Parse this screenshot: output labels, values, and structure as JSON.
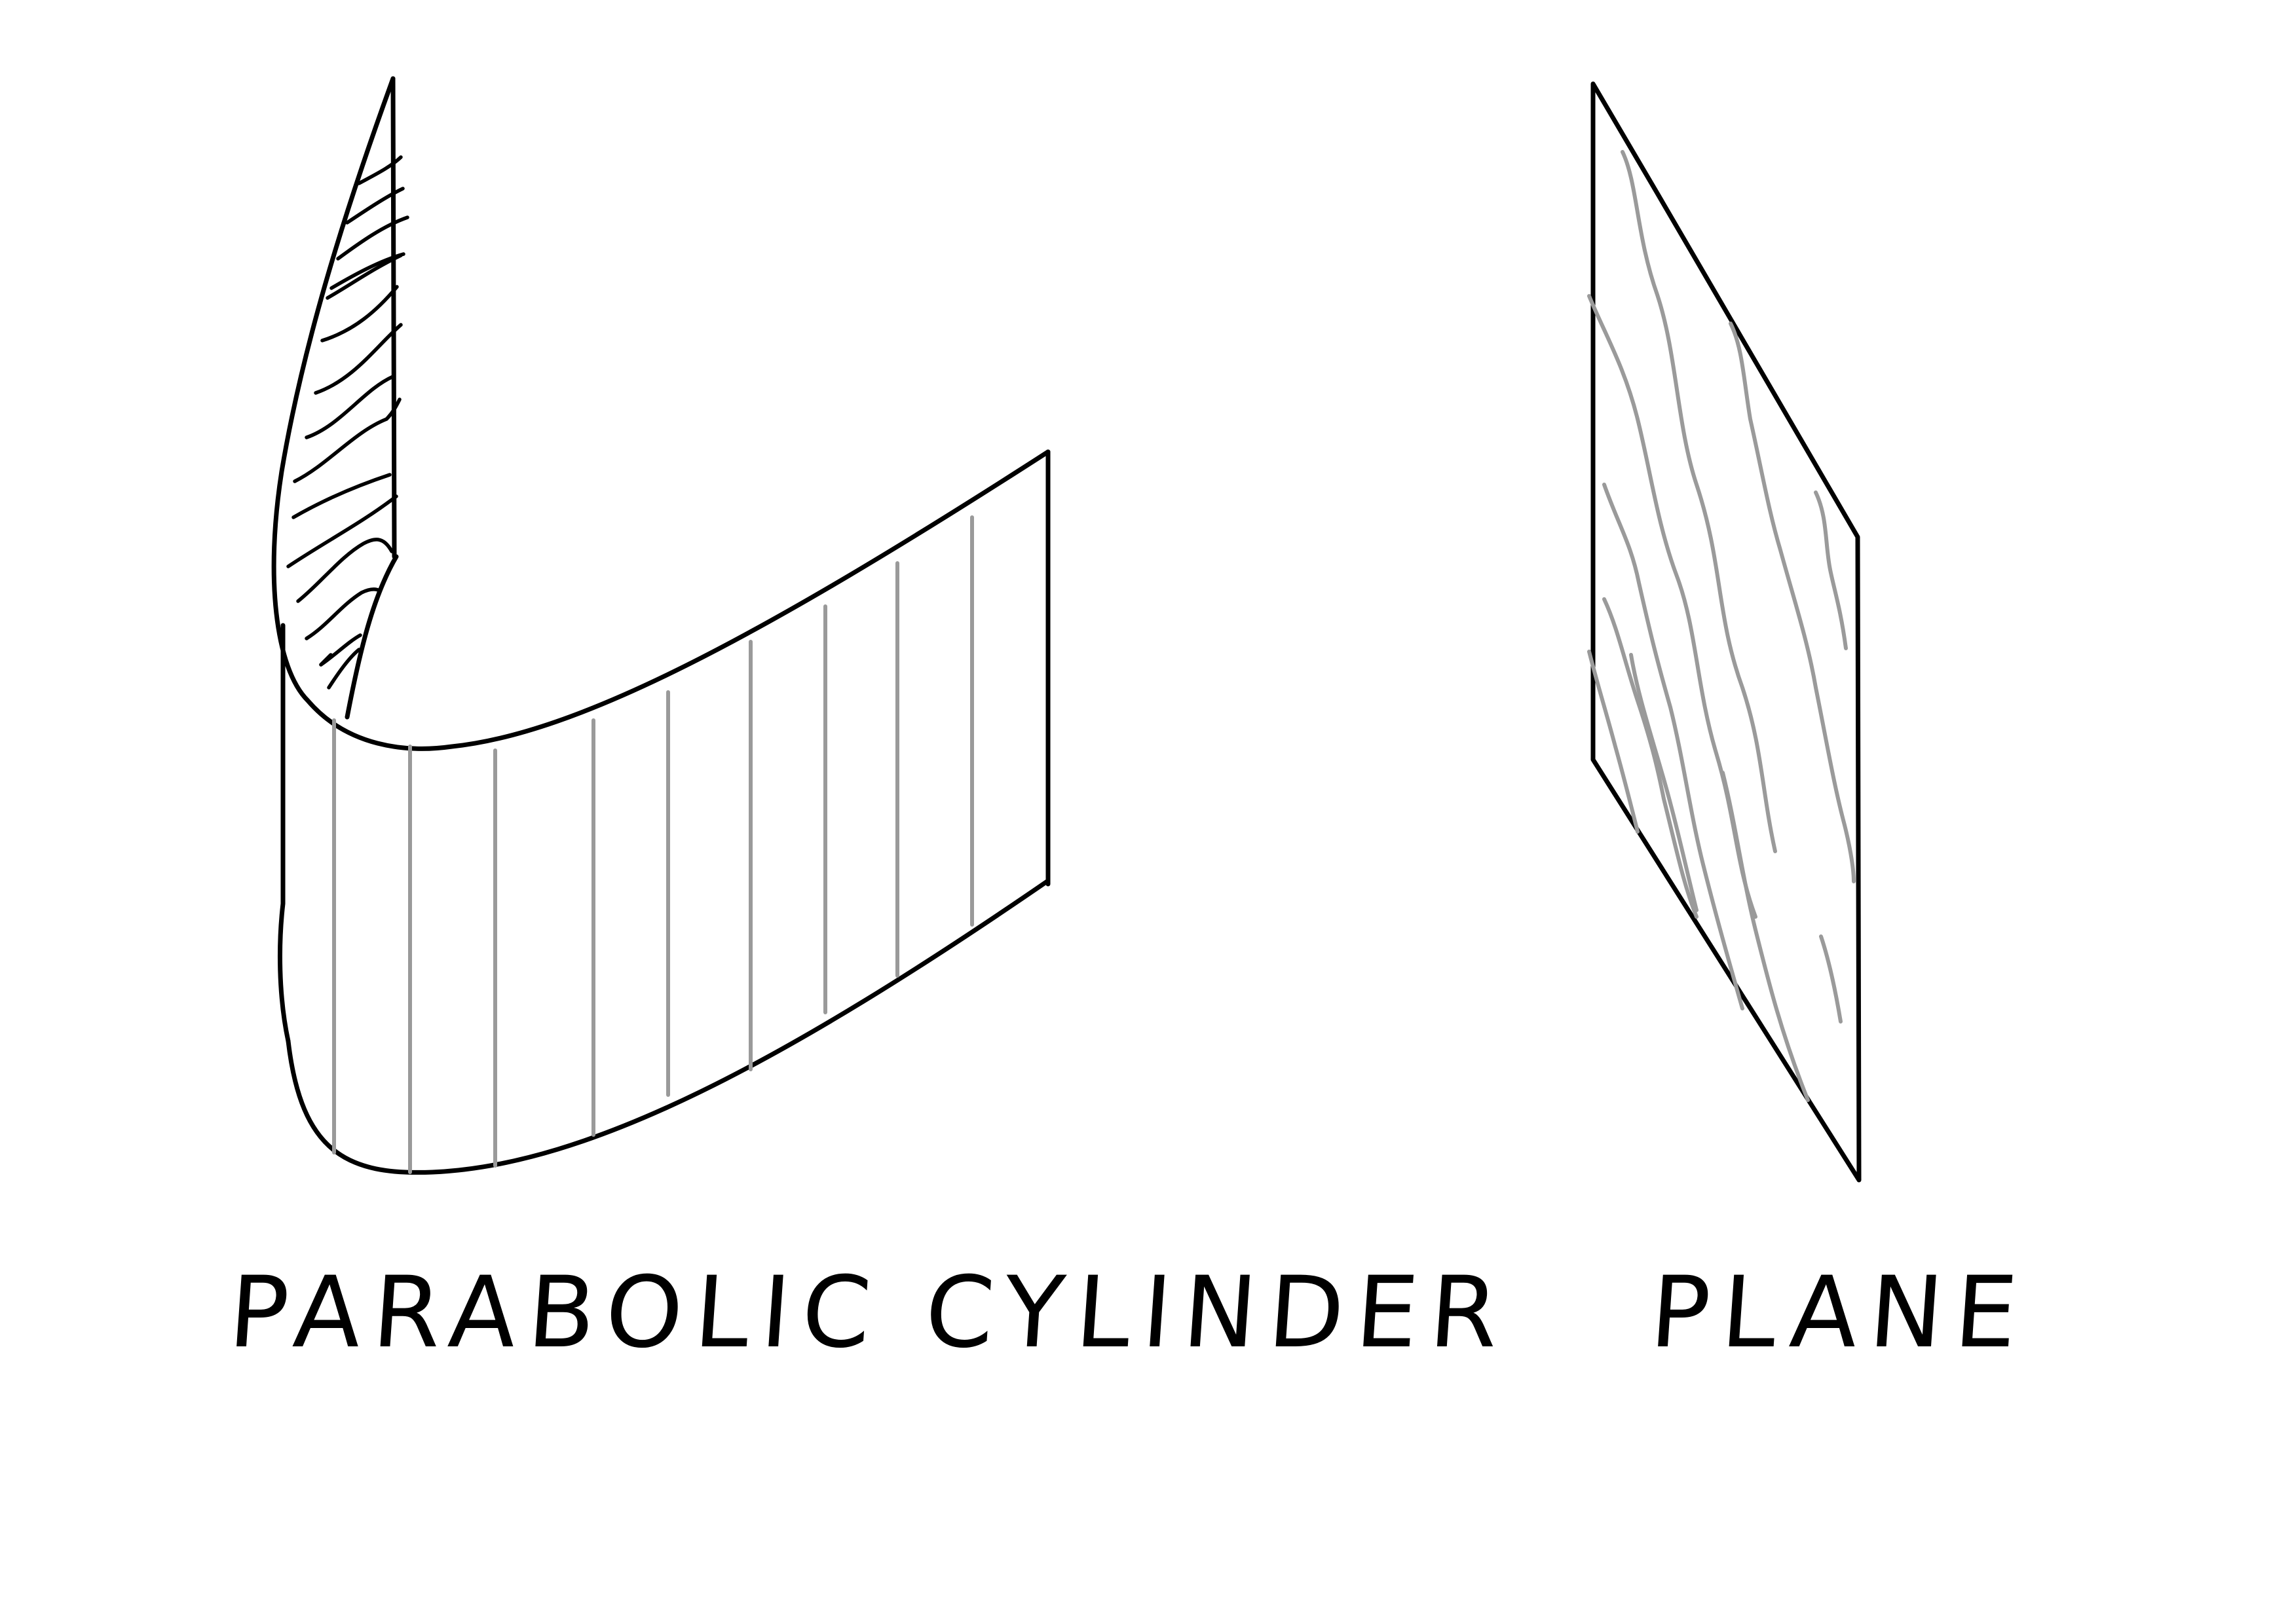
{
  "figures": {
    "cylinder": {
      "label": "PARABOLIC CYLINDER"
    },
    "plane": {
      "label": "PLANE"
    }
  },
  "colors": {
    "outline": "#000000",
    "rulings": "#9a9a9a",
    "background": "#ffffff"
  }
}
